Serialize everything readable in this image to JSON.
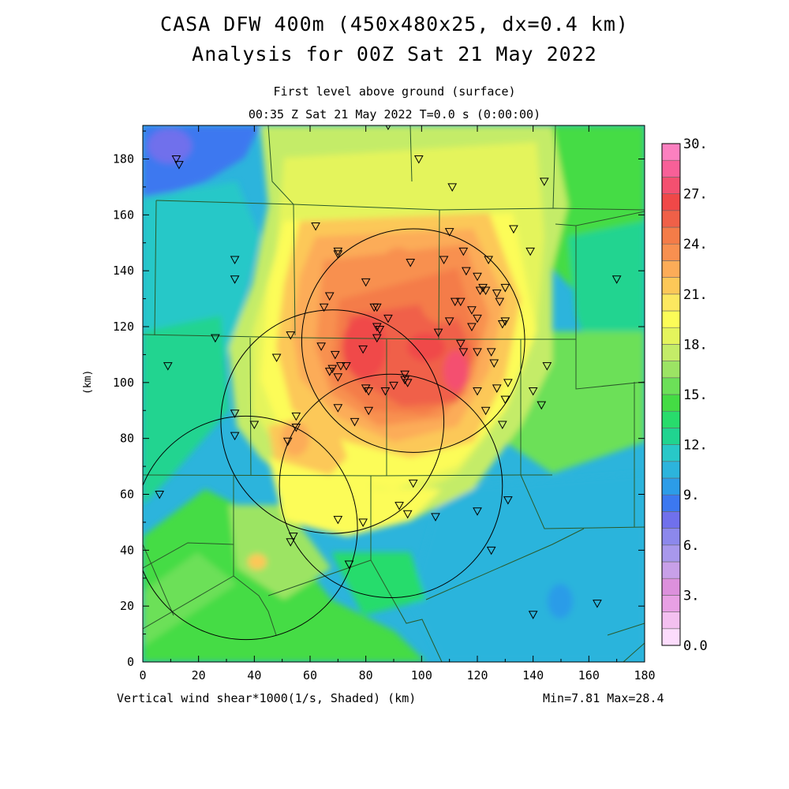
{
  "title": {
    "line1": "CASA DFW 400m (450x480x25, dx=0.4 km)",
    "line2": "Analysis for 00Z Sat 21 May 2022"
  },
  "subtitle": {
    "level": "First level above ground (surface)",
    "time": "00:35 Z Sat 21 May 2022    T=0.0 s (0:00:00)"
  },
  "axes": {
    "ylabel": "(km)",
    "xlabel": "(km)",
    "x_ticks": [
      "0",
      "20",
      "40",
      "60",
      "80",
      "100",
      "120",
      "140",
      "160",
      "180"
    ],
    "y_ticks": [
      "0",
      "20",
      "40",
      "60",
      "80",
      "100",
      "120",
      "140",
      "160",
      "180"
    ],
    "x_range": [
      0,
      180
    ],
    "y_range": [
      0,
      192
    ]
  },
  "footer": {
    "field": "Vertical wind shear*1000(1/s, Shaded)  (km)",
    "minmax": "Min=7.81 Max=28.4"
  },
  "colorbar": {
    "labels": [
      "0.0",
      "3.",
      "6.",
      "9.",
      "12.",
      "15.",
      "18.",
      "21.",
      "24.",
      "27.",
      "30."
    ],
    "colors": [
      "#fcdcfc",
      "#f4c0f0",
      "#e8a0e4",
      "#dc90dc",
      "#c8a0e8",
      "#a898ec",
      "#8c88ec",
      "#7070ec",
      "#3c78f0",
      "#2c9ce8",
      "#2cb4dc",
      "#28c8c8",
      "#20d490",
      "#28dc6c",
      "#44dc44",
      "#6ce058",
      "#9ce464",
      "#c4ec68",
      "#e4f45c",
      "#fcfc58",
      "#fce860",
      "#fcc858",
      "#fcac58",
      "#f89050",
      "#f47c48",
      "#f06048",
      "#f04848",
      "#f45070",
      "#f86098",
      "#fc80c0",
      "#fc98dc"
    ]
  },
  "stats": {
    "min": 7.81,
    "max": 28.4
  },
  "radar_rings": [
    {
      "cx": 97,
      "cy": 115,
      "r": 40
    },
    {
      "cx": 68,
      "cy": 86,
      "r": 40
    },
    {
      "cx": 37,
      "cy": 48,
      "r": 40
    },
    {
      "cx": 89,
      "cy": 63,
      "r": 40
    }
  ],
  "stations": [
    [
      12,
      180
    ],
    [
      13,
      178
    ],
    [
      99,
      180
    ],
    [
      88,
      192
    ],
    [
      144,
      172
    ],
    [
      111,
      170
    ],
    [
      62,
      156
    ],
    [
      133,
      155
    ],
    [
      70,
      147
    ],
    [
      70,
      146
    ],
    [
      110,
      154
    ],
    [
      33,
      144
    ],
    [
      115,
      147
    ],
    [
      139,
      147
    ],
    [
      96,
      143
    ],
    [
      108,
      144
    ],
    [
      124,
      144
    ],
    [
      33,
      137
    ],
    [
      80,
      136
    ],
    [
      116,
      140
    ],
    [
      120,
      138
    ],
    [
      122,
      134
    ],
    [
      127,
      132
    ],
    [
      130,
      134
    ],
    [
      123,
      133
    ],
    [
      121,
      133
    ],
    [
      67,
      131
    ],
    [
      65,
      127
    ],
    [
      128,
      129
    ],
    [
      112,
      129
    ],
    [
      114,
      129
    ],
    [
      118,
      126
    ],
    [
      84,
      127
    ],
    [
      83,
      127
    ],
    [
      110,
      122
    ],
    [
      88,
      123
    ],
    [
      120,
      123
    ],
    [
      130,
      122
    ],
    [
      129,
      121
    ],
    [
      84,
      120
    ],
    [
      85,
      119
    ],
    [
      106,
      118
    ],
    [
      118,
      120
    ],
    [
      114,
      114
    ],
    [
      53,
      117
    ],
    [
      64,
      113
    ],
    [
      84,
      116
    ],
    [
      26,
      116
    ],
    [
      115,
      111
    ],
    [
      120,
      111
    ],
    [
      125,
      111
    ],
    [
      126,
      107
    ],
    [
      69,
      110
    ],
    [
      79,
      112
    ],
    [
      48,
      109
    ],
    [
      71,
      106
    ],
    [
      73,
      106
    ],
    [
      68,
      105
    ],
    [
      67,
      104
    ],
    [
      9,
      106
    ],
    [
      145,
      106
    ],
    [
      94,
      103
    ],
    [
      94,
      101
    ],
    [
      70,
      102
    ],
    [
      95,
      100
    ],
    [
      131,
      100
    ],
    [
      90,
      99
    ],
    [
      80,
      98
    ],
    [
      127,
      98
    ],
    [
      81,
      97
    ],
    [
      87,
      97
    ],
    [
      120,
      97
    ],
    [
      140,
      97
    ],
    [
      130,
      94
    ],
    [
      33,
      89
    ],
    [
      123,
      90
    ],
    [
      81,
      90
    ],
    [
      70,
      91
    ],
    [
      143,
      92
    ],
    [
      55,
      88
    ],
    [
      76,
      86
    ],
    [
      129,
      85
    ],
    [
      40,
      85
    ],
    [
      55,
      84
    ],
    [
      33,
      81
    ],
    [
      52,
      79
    ],
    [
      6,
      60
    ],
    [
      97,
      64
    ],
    [
      131,
      58
    ],
    [
      92,
      56
    ],
    [
      95,
      53
    ],
    [
      105,
      52
    ],
    [
      120,
      54
    ],
    [
      70,
      51
    ],
    [
      79,
      50
    ],
    [
      54,
      45
    ],
    [
      53,
      43
    ],
    [
      125,
      40
    ],
    [
      74,
      35
    ],
    [
      140,
      17
    ],
    [
      163,
      21
    ],
    [
      170,
      137
    ]
  ]
}
